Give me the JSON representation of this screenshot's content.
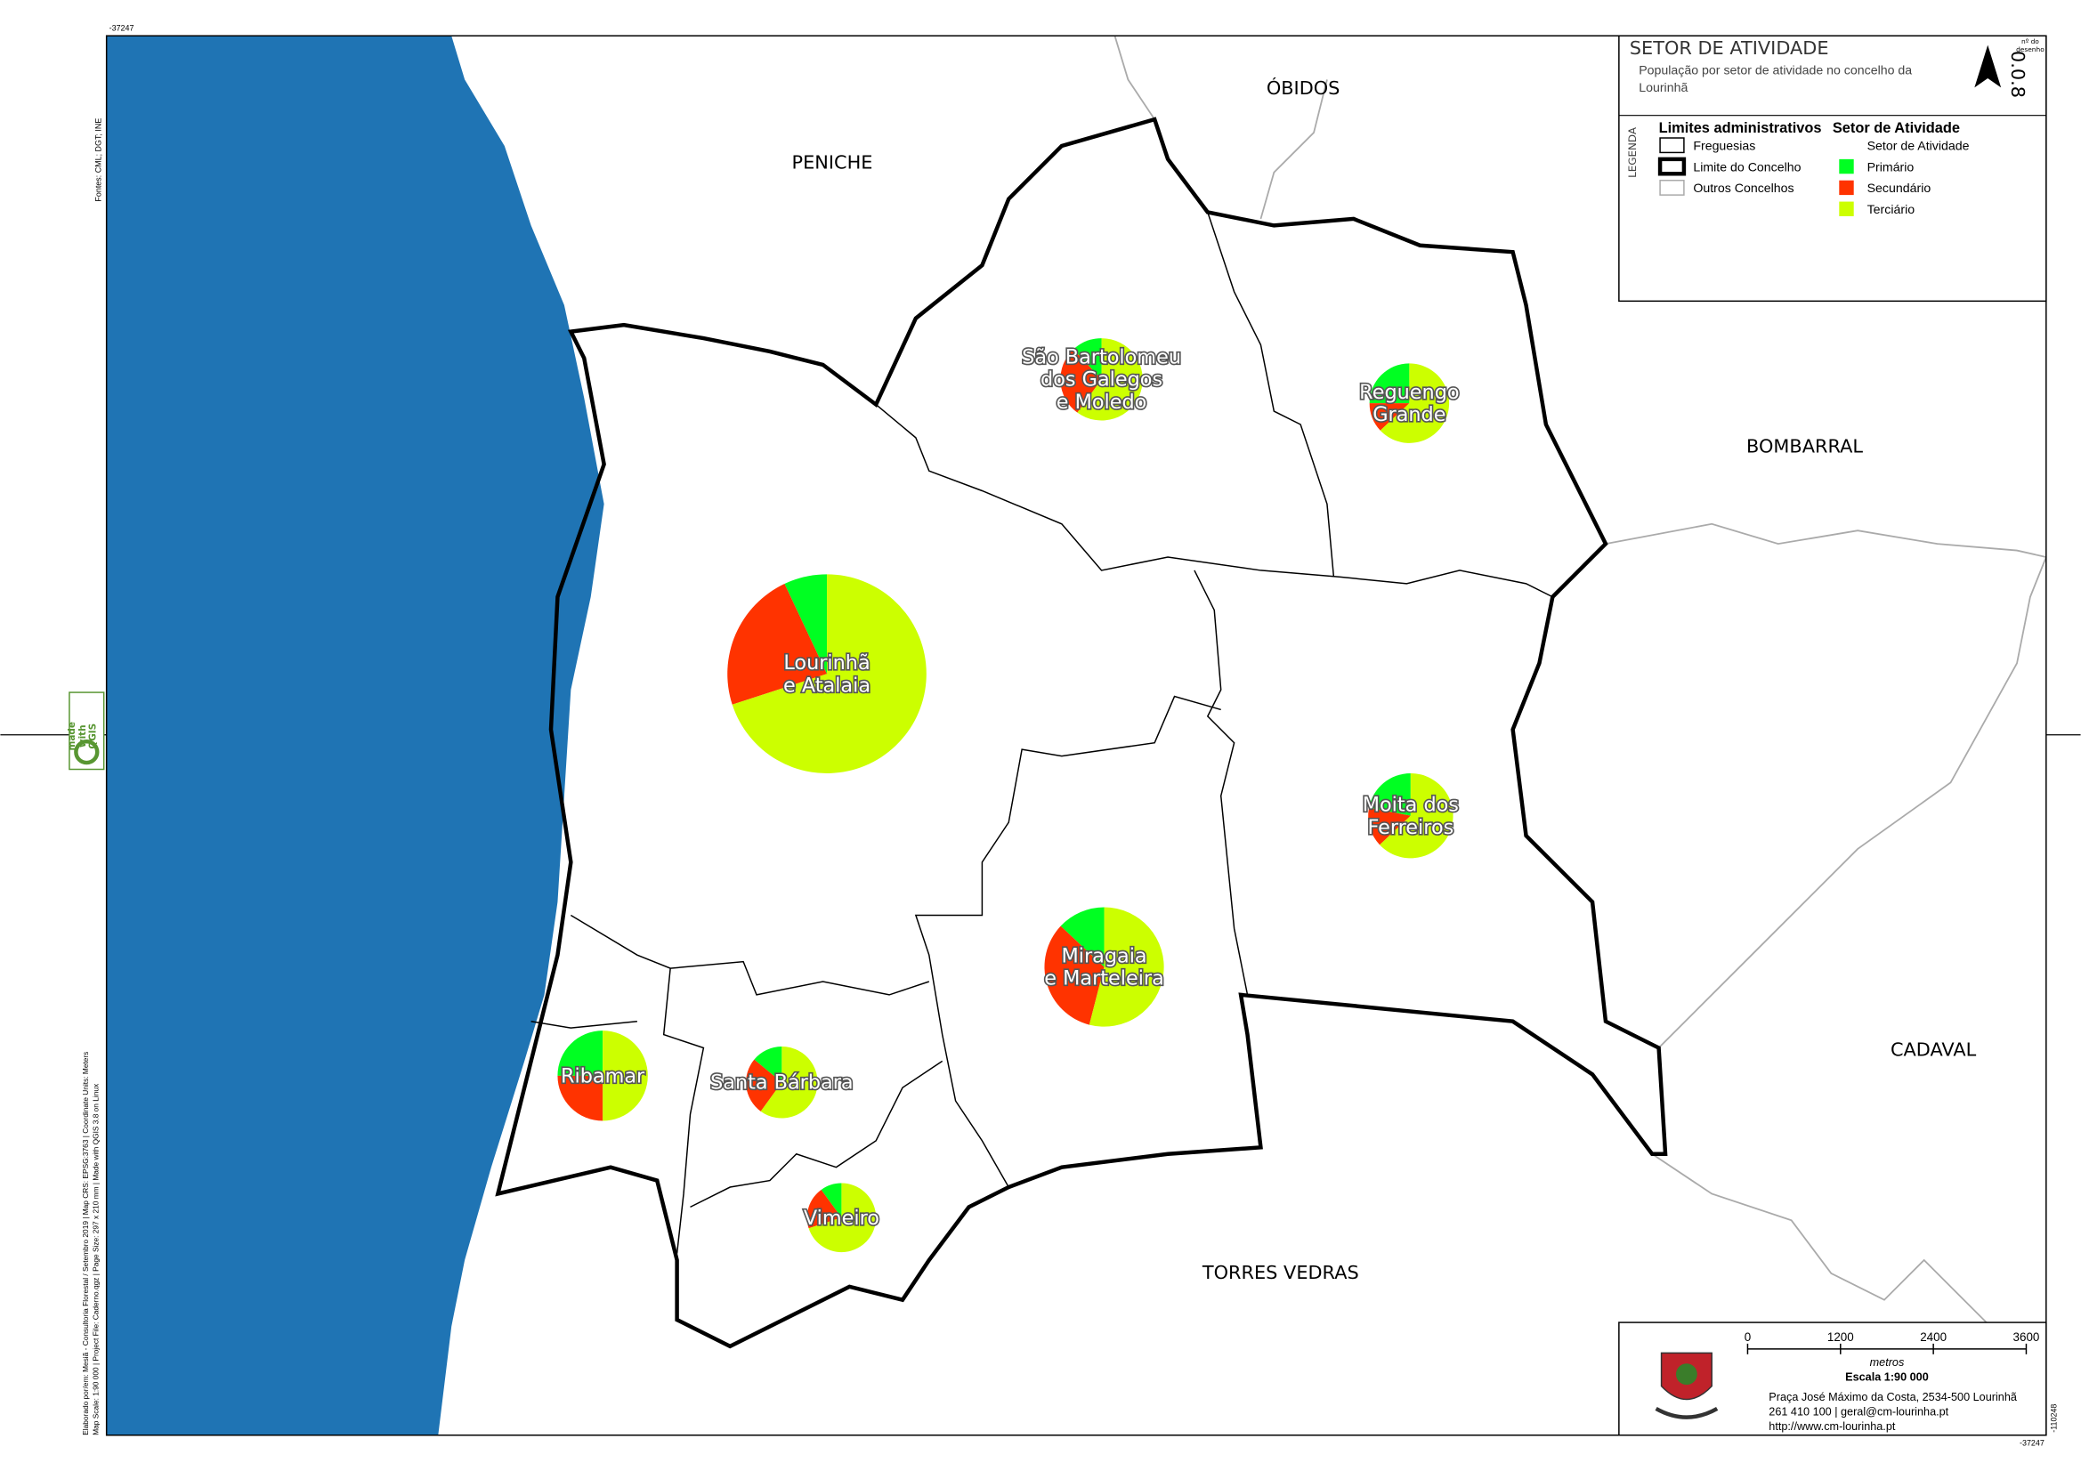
{
  "map": {
    "title": "SETOR DE ATIVIDADE",
    "subtitle_lines": [
      "População por setor de atividade no concelho da",
      "Lourinhã"
    ],
    "drawing_number_label": [
      "nº do",
      "desenho"
    ],
    "drawing_number": "0.0.8",
    "neighbours": [
      "PENICHE",
      "ÓBIDOS",
      "BOMBARRAL",
      "CADAVAL",
      "TORRES VEDRAS"
    ],
    "legend": {
      "side_label": "LEGENDA",
      "admin_title": "Limites administrativos",
      "admin_items": [
        "Freguesias",
        "Limite do Concelho",
        "Outros Concelhos"
      ],
      "sector_title": "Setor de Atividade",
      "sector_subtitle": "Setor de Atividade",
      "sectors": [
        {
          "name": "Primário",
          "color": "#00ff22"
        },
        {
          "name": "Secundário",
          "color": "#ff3300"
        },
        {
          "name": "Terciário",
          "color": "#ccff00"
        }
      ]
    },
    "freguesias": [
      {
        "name_lines": [
          "Lourinhã",
          "e Atalaia"
        ],
        "shares": [
          7,
          23,
          70
        ]
      },
      {
        "name_lines": [
          "São Bartolomeu",
          "dos Galegos",
          "e Moledo"
        ],
        "shares": [
          12,
          28,
          60
        ]
      },
      {
        "name_lines": [
          "Reguengo",
          "Grande"
        ],
        "shares": [
          25,
          12,
          63
        ]
      },
      {
        "name_lines": [
          "Moita dos",
          "Ferreiros"
        ],
        "shares": [
          22,
          15,
          63
        ]
      },
      {
        "name_lines": [
          "Miragaia",
          "e Marteleira"
        ],
        "shares": [
          13,
          33,
          54
        ]
      },
      {
        "name_lines": [
          "Ribamar"
        ],
        "shares": [
          25,
          25,
          50
        ]
      },
      {
        "name_lines": [
          "Santa Bárbara"
        ],
        "shares": [
          14,
          26,
          60
        ]
      },
      {
        "name_lines": [
          "Vimeiro"
        ],
        "shares": [
          10,
          20,
          70
        ]
      }
    ],
    "scale": {
      "ticks": [
        "0",
        "1200",
        "2400",
        "3600"
      ],
      "unit": "metros",
      "label": "Escala 1:90 000"
    },
    "address": [
      "Praça José Máximo da Costa, 2534-500 Lourinhã",
      "261 410 100 | geral@cm-lourinha.pt",
      "http://www.cm-lourinha.pt"
    ],
    "qgis_badge": [
      "made",
      "with",
      "QGIS"
    ],
    "sources": "Fontes: CML; DGT; INE",
    "credits": [
      "Elaborado por/em: Mesiã - Consultoria Florestal / Setembro 2019 | Map CRS: EPSG:3763 | Coordinate Units: Meters",
      "Map Scale: 1:90 000 | Project File: Caderno.qgz | Page Size: 297 x 210 mm | Made with QGIS 3.8 on Linux"
    ],
    "coords": [
      "-37247",
      "-37247",
      "-110248"
    ]
  }
}
